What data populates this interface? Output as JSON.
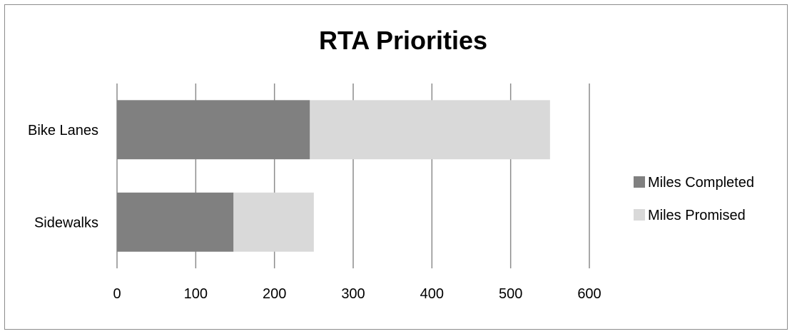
{
  "chart_data": {
    "type": "bar",
    "orientation": "horizontal",
    "stacked": true,
    "title": "RTA Priorities",
    "categories": [
      "Bike Lanes",
      "Sidewalks"
    ],
    "series": [
      {
        "name": "Miles Completed",
        "values": [
          245,
          148
        ],
        "color": "#808080"
      },
      {
        "name": "Miles Promised",
        "values": [
          305,
          102
        ],
        "color": "#d9d9d9"
      }
    ],
    "xlim": [
      0,
      600
    ],
    "x_ticks": [
      "0",
      "100",
      "200",
      "300",
      "400",
      "500",
      "600"
    ],
    "grid": "vertical",
    "legend": "right"
  }
}
